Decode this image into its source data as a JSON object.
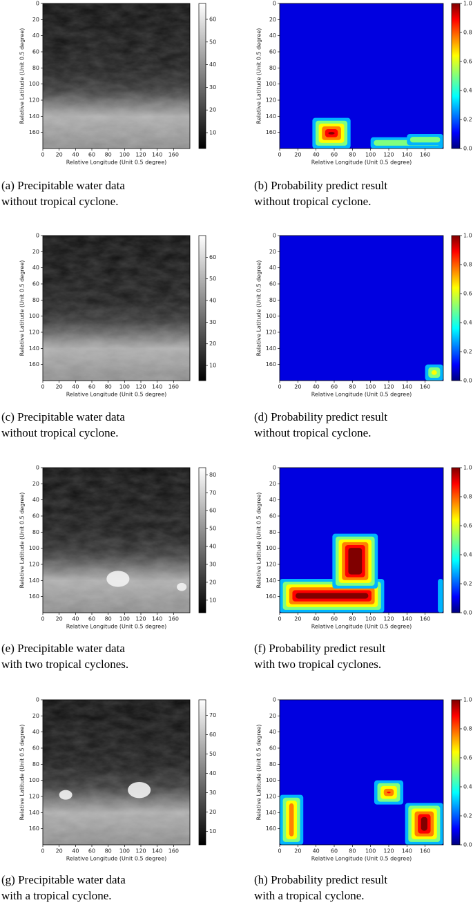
{
  "figures": [
    {
      "kind": "water",
      "caption": [
        "(a) Precipitable water data",
        "without tropical cyclone."
      ],
      "xlabel": "Relative Longitude (Unit 0.5 degree)",
      "ylabel": "Relative Latitude (Unit 0.5 degree)",
      "xlim": [
        0,
        180
      ],
      "ylim": [
        0,
        180
      ],
      "xticks": [
        0,
        20,
        40,
        60,
        80,
        100,
        120,
        140,
        160
      ],
      "yticks": [
        0,
        20,
        40,
        60,
        80,
        100,
        120,
        140,
        160
      ],
      "clim": [
        3,
        67
      ],
      "cticks": [
        10,
        20,
        30,
        40,
        50,
        60
      ]
    },
    {
      "kind": "prob",
      "caption": [
        "(b) Probability predict result",
        "without tropical cyclone."
      ],
      "xlabel": "Relative Longitude (Unit 0.5 degree)",
      "ylabel": "Relative Latitude (Unit 0.5 degree)",
      "xlim": [
        0,
        180
      ],
      "ylim": [
        0,
        180
      ],
      "xticks": [
        0,
        20,
        40,
        60,
        80,
        100,
        120,
        140,
        160
      ],
      "yticks": [
        0,
        20,
        40,
        60,
        80,
        100,
        120,
        140,
        160
      ],
      "clim": [
        0,
        1
      ],
      "cticks": [
        {
          "value": 0,
          "label": "0.0"
        },
        {
          "value": 0.2,
          "label": "0.2"
        },
        {
          "value": 0.4,
          "label": "0.4"
        },
        {
          "value": 0.6,
          "label": "0.6"
        },
        {
          "value": 0.8,
          "label": "0.8"
        },
        {
          "value": 1,
          "label": "1.0"
        }
      ]
    },
    {
      "kind": "water",
      "caption": [
        "(c) Precipitable water data",
        "without tropical cyclone."
      ],
      "xlabel": "Relative Longitude (Unit 0.5 degree)",
      "ylabel": "Relative Latitude (Unit 0.5 degree)",
      "xlim": [
        0,
        180
      ],
      "ylim": [
        0,
        180
      ],
      "xticks": [
        0,
        20,
        40,
        60,
        80,
        100,
        120,
        140,
        160
      ],
      "yticks": [
        0,
        20,
        40,
        60,
        80,
        100,
        120,
        140,
        160
      ],
      "clim": [
        3,
        70
      ],
      "cticks": [
        10,
        20,
        30,
        40,
        50,
        60
      ]
    },
    {
      "kind": "prob",
      "caption": [
        "(d) Probability predict result",
        "without tropical cyclone."
      ],
      "xlabel": "Relative Longitude (Unit 0.5 degree)",
      "ylabel": "Relative Latitude (Unit 0.5 degree)",
      "xlim": [
        0,
        180
      ],
      "ylim": [
        0,
        180
      ],
      "xticks": [
        0,
        20,
        40,
        60,
        80,
        100,
        120,
        140,
        160
      ],
      "yticks": [
        0,
        20,
        40,
        60,
        80,
        100,
        120,
        140,
        160
      ],
      "clim": [
        0,
        1
      ],
      "cticks": [
        {
          "value": 0,
          "label": "0.0"
        },
        {
          "value": 0.2,
          "label": "0.2"
        },
        {
          "value": 0.4,
          "label": "0.4"
        },
        {
          "value": 0.6,
          "label": "0.6"
        },
        {
          "value": 0.8,
          "label": "0.8"
        },
        {
          "value": 1,
          "label": "1.0"
        }
      ]
    },
    {
      "kind": "water",
      "caption": [
        "(e) Precipitable water data",
        "with two tropical cyclones."
      ],
      "xlabel": "Relative Longitude (Unit 0.5 degree)",
      "ylabel": "Relative Latitude (Unit 0.5 degree)",
      "xlim": [
        0,
        180
      ],
      "ylim": [
        0,
        180
      ],
      "xticks": [
        0,
        20,
        40,
        60,
        80,
        100,
        120,
        140,
        160
      ],
      "yticks": [
        0,
        20,
        40,
        60,
        80,
        100,
        120,
        140,
        160
      ],
      "clim": [
        3,
        84
      ],
      "cticks": [
        10,
        20,
        30,
        40,
        50,
        60,
        70,
        80
      ]
    },
    {
      "kind": "prob",
      "caption": [
        "(f) Probability predict result",
        "with two tropical cyclones."
      ],
      "xlabel": "Relative Longitude (Unit 0.5 degree)",
      "ylabel": "Relative Latitude (Unit 0.5 degree)",
      "xlim": [
        0,
        180
      ],
      "ylim": [
        0,
        180
      ],
      "xticks": [
        0,
        20,
        40,
        60,
        80,
        100,
        120,
        140,
        160
      ],
      "yticks": [
        0,
        20,
        40,
        60,
        80,
        100,
        120,
        140,
        160
      ],
      "clim": [
        0,
        1
      ],
      "cticks": [
        {
          "value": 0,
          "label": "0.0"
        },
        {
          "value": 0.2,
          "label": "0.2"
        },
        {
          "value": 0.4,
          "label": "0.4"
        },
        {
          "value": 0.6,
          "label": "0.6"
        },
        {
          "value": 0.8,
          "label": "0.8"
        },
        {
          "value": 1,
          "label": "1.0"
        }
      ]
    },
    {
      "kind": "water",
      "caption": [
        "(g) Precipitable water data",
        "with a tropical cyclone."
      ],
      "xlabel": "Relative Longitude (Unit 0.5 degree)",
      "ylabel": "Relative Latitude (Unit 0.5 degree)",
      "xlim": [
        0,
        180
      ],
      "ylim": [
        0,
        180
      ],
      "xticks": [
        0,
        20,
        40,
        60,
        80,
        100,
        120,
        140,
        160
      ],
      "yticks": [
        0,
        20,
        40,
        60,
        80,
        100,
        120,
        140,
        160
      ],
      "clim": [
        3,
        78
      ],
      "cticks": [
        10,
        20,
        30,
        40,
        50,
        60,
        70
      ]
    },
    {
      "kind": "prob",
      "caption": [
        "(h) Probability predict result",
        "with a tropical cyclone."
      ],
      "xlabel": "Relative Longitude (Unit 0.5 degree)",
      "ylabel": "Relative Latitude (Unit 0.5 degree)",
      "xlim": [
        0,
        180
      ],
      "ylim": [
        0,
        180
      ],
      "xticks": [
        0,
        20,
        40,
        60,
        80,
        100,
        120,
        140,
        160
      ],
      "yticks": [
        0,
        20,
        40,
        60,
        80,
        100,
        120,
        140,
        160
      ],
      "clim": [
        0,
        1
      ],
      "cticks": [
        {
          "value": 0,
          "label": "0.0"
        },
        {
          "value": 0.2,
          "label": "0.2"
        },
        {
          "value": 0.4,
          "label": "0.4"
        },
        {
          "value": 0.6,
          "label": "0.6"
        },
        {
          "value": 0.8,
          "label": "0.8"
        },
        {
          "value": 1,
          "label": "1.0"
        }
      ]
    }
  ]
}
